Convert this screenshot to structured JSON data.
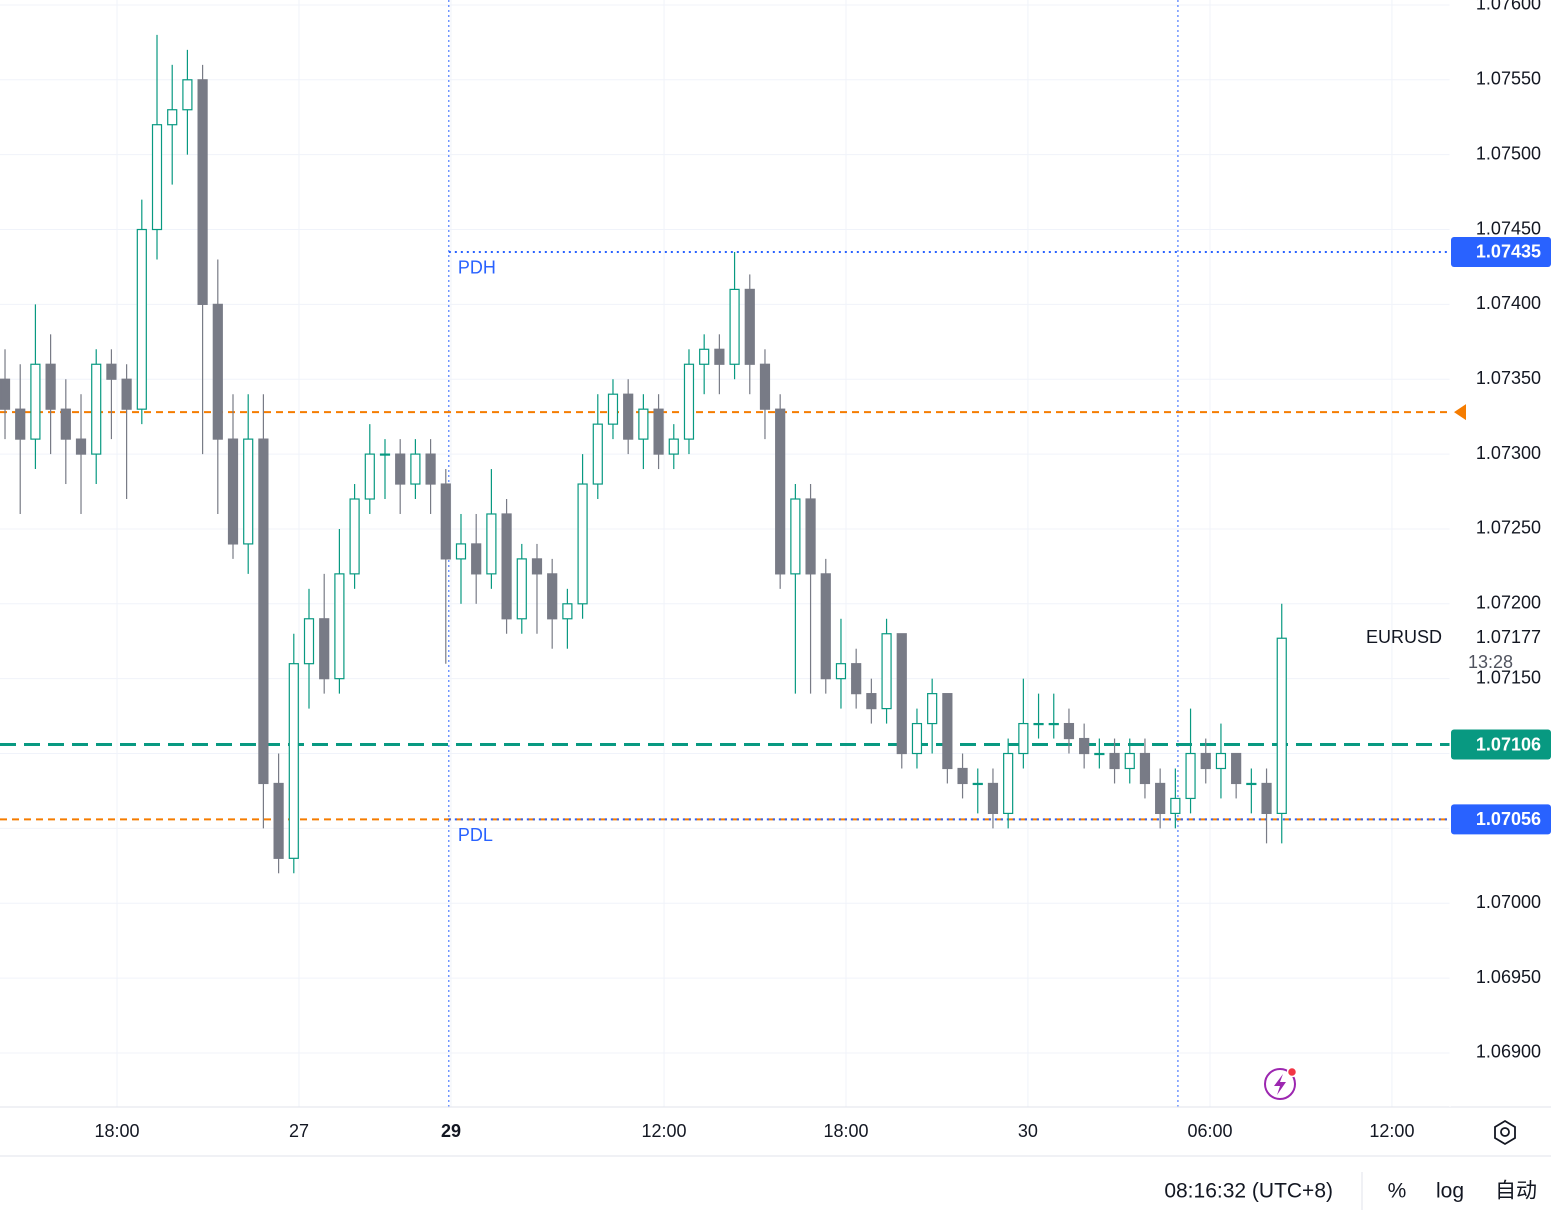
{
  "chart_data": {
    "type": "candlestick",
    "symbol": "EURUSD",
    "countdown": "13:28",
    "up_color": "#089981",
    "down_color": "#787b86",
    "open": [
      1.0735,
      1.0733,
      1.0731,
      1.0736,
      1.0733,
      1.0731,
      1.073,
      1.0736,
      1.0735,
      1.0733,
      1.0745,
      1.0752,
      1.0753,
      1.0755,
      1.074,
      1.0731,
      1.0724,
      1.0731,
      1.0708,
      1.0703,
      1.0716,
      1.0719,
      1.0715,
      1.0722,
      1.0727,
      1.073,
      1.073,
      1.0728,
      1.073,
      1.0728,
      1.0723,
      1.0724,
      1.0722,
      1.0726,
      1.0719,
      1.0723,
      1.0722,
      1.0719,
      1.072,
      1.0728,
      1.0732,
      1.0734,
      1.0731,
      1.0733,
      1.073,
      1.0731,
      1.0736,
      1.0737,
      1.0736,
      1.0741,
      1.0736,
      1.0733,
      1.0722,
      1.0727,
      1.0722,
      1.0715,
      1.0716,
      1.0714,
      1.0713,
      1.0718,
      1.071,
      1.0712,
      1.0714,
      1.0709,
      1.0708,
      1.0708,
      1.0706,
      1.071,
      1.0712,
      1.0712,
      1.0712,
      1.0711,
      1.071,
      1.071,
      1.0709,
      1.071,
      1.0708,
      1.0706,
      1.0707,
      1.071,
      1.0709,
      1.071,
      1.0708,
      1.0708,
      1.0706
    ],
    "high": [
      1.0737,
      1.0736,
      1.074,
      1.0738,
      1.0735,
      1.0734,
      1.0737,
      1.0737,
      1.0736,
      1.0747,
      1.0758,
      1.0756,
      1.0757,
      1.0756,
      1.0743,
      1.0734,
      1.0734,
      1.0734,
      1.071,
      1.0718,
      1.0721,
      1.0722,
      1.0725,
      1.0728,
      1.0732,
      1.0731,
      1.0731,
      1.0731,
      1.0731,
      1.0729,
      1.0726,
      1.0726,
      1.0729,
      1.0727,
      1.0724,
      1.0724,
      1.0723,
      1.0721,
      1.073,
      1.0734,
      1.0735,
      1.0735,
      1.0734,
      1.0734,
      1.0732,
      1.0737,
      1.0738,
      1.0738,
      1.07435,
      1.0742,
      1.0737,
      1.0734,
      1.0728,
      1.0728,
      1.0723,
      1.0719,
      1.0717,
      1.0715,
      1.0719,
      1.0718,
      1.0713,
      1.0715,
      1.0714,
      1.071,
      1.0709,
      1.0709,
      1.0711,
      1.0715,
      1.0714,
      1.0714,
      1.0713,
      1.0712,
      1.0711,
      1.0711,
      1.0711,
      1.0711,
      1.0709,
      1.0709,
      1.0713,
      1.0711,
      1.0712,
      1.071,
      1.0709,
      1.0709,
      1.072
    ],
    "low": [
      1.0731,
      1.0726,
      1.0729,
      1.073,
      1.0728,
      1.0726,
      1.0728,
      1.0731,
      1.0727,
      1.0732,
      1.0743,
      1.0748,
      1.075,
      1.073,
      1.0726,
      1.0723,
      1.0722,
      1.0705,
      1.0702,
      1.0702,
      1.0713,
      1.0714,
      1.0714,
      1.0721,
      1.0726,
      1.0727,
      1.0726,
      1.0727,
      1.0726,
      1.0716,
      1.072,
      1.072,
      1.0721,
      1.0718,
      1.0718,
      1.0718,
      1.0717,
      1.0717,
      1.0719,
      1.0727,
      1.0731,
      1.073,
      1.0729,
      1.0729,
      1.0729,
      1.073,
      1.0734,
      1.0734,
      1.0735,
      1.0734,
      1.0731,
      1.0721,
      1.0714,
      1.0714,
      1.0714,
      1.0713,
      1.0713,
      1.0712,
      1.0712,
      1.0709,
      1.0709,
      1.071,
      1.0708,
      1.0707,
      1.0706,
      1.0705,
      1.0705,
      1.0709,
      1.0711,
      1.0711,
      1.071,
      1.0709,
      1.0709,
      1.0708,
      1.0708,
      1.0707,
      1.0705,
      1.0705,
      1.0706,
      1.0708,
      1.0707,
      1.0707,
      1.0706,
      1.0704,
      1.0704
    ],
    "close": [
      1.0733,
      1.0731,
      1.0736,
      1.0733,
      1.0731,
      1.073,
      1.0736,
      1.0735,
      1.0733,
      1.0745,
      1.0752,
      1.0753,
      1.0755,
      1.074,
      1.0731,
      1.0724,
      1.0731,
      1.0708,
      1.0703,
      1.0716,
      1.0719,
      1.0715,
      1.0722,
      1.0727,
      1.073,
      1.073,
      1.0728,
      1.073,
      1.0728,
      1.0723,
      1.0724,
      1.0722,
      1.0726,
      1.0719,
      1.0723,
      1.0722,
      1.0719,
      1.072,
      1.0728,
      1.0732,
      1.0734,
      1.0731,
      1.0733,
      1.073,
      1.0731,
      1.0736,
      1.0737,
      1.0736,
      1.0741,
      1.0736,
      1.0733,
      1.0722,
      1.0727,
      1.0722,
      1.0715,
      1.0716,
      1.0714,
      1.0713,
      1.0718,
      1.071,
      1.0712,
      1.0714,
      1.0709,
      1.0708,
      1.0708,
      1.0706,
      1.071,
      1.0712,
      1.0712,
      1.0712,
      1.0711,
      1.071,
      1.071,
      1.0709,
      1.071,
      1.0708,
      1.0706,
      1.0707,
      1.071,
      1.0709,
      1.071,
      1.0708,
      1.0708,
      1.0706,
      1.07177
    ],
    "xlim": [
      -0.33,
      95.07
    ],
    "xticks": [
      {
        "value": 7.37,
        "label": "18:00"
      },
      {
        "value": 19.34,
        "label": "27"
      },
      {
        "value": 29.34,
        "label": "29"
      },
      {
        "value": 43.36,
        "label": "12:00"
      },
      {
        "value": 55.33,
        "label": "18:00"
      },
      {
        "value": 67.3,
        "label": "30"
      },
      {
        "value": 79.28,
        "label": "06:00"
      },
      {
        "value": 91.25,
        "label": "12:00"
      }
    ],
    "session_breaks": [
      29.2,
      77.17
    ],
    "ylim": [
      1.068639,
      1.076033
    ],
    "yticks": [
      {
        "value": 1.069,
        "label": "1.06900"
      },
      {
        "value": 1.0695,
        "label": "1.06950"
      },
      {
        "value": 1.07,
        "label": "1.07000"
      },
      {
        "value": 1.0705,
        "label": "1.07050"
      },
      {
        "value": 1.071,
        "label": "1.07100"
      },
      {
        "value": 1.0715,
        "label": "1.07150"
      },
      {
        "value": 1.072,
        "label": "1.07200"
      },
      {
        "value": 1.0725,
        "label": "1.07250"
      },
      {
        "value": 1.073,
        "label": "1.07300"
      },
      {
        "value": 1.0735,
        "label": "1.07350"
      },
      {
        "value": 1.074,
        "label": "1.07400"
      },
      {
        "value": 1.0745,
        "label": "1.07450"
      },
      {
        "value": 1.075,
        "label": "1.07500"
      },
      {
        "value": 1.0755,
        "label": "1.07550"
      },
      {
        "value": 1.076,
        "label": "1.07600"
      }
    ],
    "grid": true,
    "levels": [
      {
        "value": 1.07328,
        "color": "#f57c00",
        "style": "dashed"
      },
      {
        "value": 1.07056,
        "color": "#f57c00",
        "style": "dashed"
      },
      {
        "value": 1.07106,
        "color": "#089981",
        "style": "bold-dashed"
      },
      {
        "name": "PDH",
        "value": 1.07435,
        "color": "#2962ff",
        "style": "dotted"
      },
      {
        "name": "PDL",
        "value": 1.07056,
        "color": "#2962ff",
        "style": "dotted"
      }
    ]
  },
  "toolbar": {
    "time": "08:16:32 (UTC+8)",
    "buttons": [
      "%",
      "log",
      "自动"
    ]
  }
}
